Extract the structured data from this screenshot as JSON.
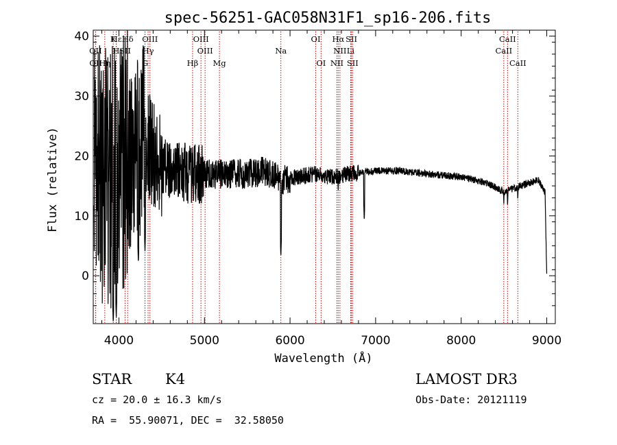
{
  "chart_data": {
    "type": "line",
    "title": "spec-56251-GAC058N31F1_sp16-206.fits",
    "xlabel": "Wavelength (Å)",
    "ylabel": "Flux (relative)",
    "xlim": [
      3700,
      9100
    ],
    "ylim": [
      -8,
      41
    ],
    "xticks": [
      4000,
      5000,
      6000,
      7000,
      8000,
      9000
    ],
    "yticks": [
      0,
      10,
      20,
      30,
      40
    ],
    "spectrum_anchors": [
      {
        "x": 3700,
        "y": 17
      },
      {
        "x": 3850,
        "y": 16
      },
      {
        "x": 4000,
        "y": 17
      },
      {
        "x": 4150,
        "y": 21
      },
      {
        "x": 4300,
        "y": 23
      },
      {
        "x": 4450,
        "y": 19
      },
      {
        "x": 4600,
        "y": 18
      },
      {
        "x": 4800,
        "y": 17
      },
      {
        "x": 5000,
        "y": 17
      },
      {
        "x": 5200,
        "y": 17
      },
      {
        "x": 5500,
        "y": 17
      },
      {
        "x": 5700,
        "y": 17.5
      },
      {
        "x": 5900,
        "y": 16
      },
      {
        "x": 6100,
        "y": 16.5
      },
      {
        "x": 6300,
        "y": 17
      },
      {
        "x": 6500,
        "y": 16.5
      },
      {
        "x": 6700,
        "y": 17
      },
      {
        "x": 7000,
        "y": 17.5
      },
      {
        "x": 7300,
        "y": 17.5
      },
      {
        "x": 7600,
        "y": 17
      },
      {
        "x": 8000,
        "y": 16.5
      },
      {
        "x": 8300,
        "y": 15.5
      },
      {
        "x": 8500,
        "y": 14
      },
      {
        "x": 8700,
        "y": 15
      },
      {
        "x": 8900,
        "y": 16
      },
      {
        "x": 8980,
        "y": 14
      },
      {
        "x": 9000,
        "y": 0
      }
    ],
    "spectrum_dips": [
      {
        "x": 3934,
        "y": -8
      },
      {
        "x": 3969,
        "y": -7
      },
      {
        "x": 4227,
        "y": 2
      },
      {
        "x": 4305,
        "y": 4
      },
      {
        "x": 5893,
        "y": 3
      },
      {
        "x": 6563,
        "y": 14
      },
      {
        "x": 6867,
        "y": 9
      },
      {
        "x": 8498,
        "y": 12
      },
      {
        "x": 8542,
        "y": 11.5
      },
      {
        "x": 8662,
        "y": 12.5
      }
    ],
    "lines": [
      {
        "label": "Hε",
        "x": 3970,
        "row": 0,
        "color": "#cc0000"
      },
      {
        "label": "K",
        "x": 3934,
        "row": 0,
        "color": "#cc0000"
      },
      {
        "label": "Hδ",
        "x": 4102,
        "row": 0,
        "color": "#cc0000"
      },
      {
        "label": "OIII",
        "x": 4363,
        "row": 0,
        "color": "#cc0000"
      },
      {
        "label": "OIII",
        "x": 4959,
        "row": 0,
        "color": "#cc0000"
      },
      {
        "label": "OI",
        "x": 6300,
        "row": 0,
        "color": "#cc0000"
      },
      {
        "label": "Hα",
        "x": 6563,
        "row": 0,
        "color": "#cc0000"
      },
      {
        "label": "SII",
        "x": 6717,
        "row": 0,
        "color": "#cc0000"
      },
      {
        "label": "CaII",
        "x": 8542,
        "row": 0,
        "color": "#cc0000"
      },
      {
        "label": "OII",
        "x": 3727,
        "row": 1,
        "color": "#cc0000"
      },
      {
        "label": "H",
        "x": 3968,
        "row": 1,
        "color": "#cc0000"
      },
      {
        "label": "SII",
        "x": 4072,
        "row": 1,
        "color": "#cc0000"
      },
      {
        "label": "Hγ",
        "x": 4341,
        "row": 1,
        "color": "#cc0000"
      },
      {
        "label": "OIII",
        "x": 5007,
        "row": 1,
        "color": "#cc0000"
      },
      {
        "label": "Na",
        "x": 5893,
        "row": 1,
        "color": "#cc0000"
      },
      {
        "label": "NII",
        "x": 6583,
        "row": 1,
        "color": "#cc0000"
      },
      {
        "label": "Li",
        "x": 6708,
        "row": 1,
        "color": "#cc0000"
      },
      {
        "label": "CaII",
        "x": 8498,
        "row": 1,
        "color": "#cc0000"
      },
      {
        "label": "OII",
        "x": 3729,
        "row": 2,
        "color": "#cc0000"
      },
      {
        "label": "Hη",
        "x": 3835,
        "row": 2,
        "color": "#cc0000"
      },
      {
        "label": "G",
        "x": 4305,
        "row": 2,
        "color": "#cc0000"
      },
      {
        "label": "Hβ",
        "x": 4861,
        "row": 2,
        "color": "#cc0000"
      },
      {
        "label": "Mg",
        "x": 5175,
        "row": 2,
        "color": "#cc0000"
      },
      {
        "label": "OI",
        "x": 6363,
        "row": 2,
        "color": "#cc0000"
      },
      {
        "label": "NII",
        "x": 6548,
        "row": 2,
        "color": "#cc0000"
      },
      {
        "label": "SII",
        "x": 6731,
        "row": 2,
        "color": "#cc0000"
      },
      {
        "label": "CaII",
        "x": 8662,
        "row": 2,
        "color": "#cc0000"
      }
    ]
  },
  "info": {
    "class_label": "STAR",
    "subclass": "K4",
    "survey": "LAMOST DR3",
    "cz": "cz = 20.0 ± 16.3 km/s",
    "obs_date": "Obs-Date: 20121119",
    "coords": "RA =  55.90071, DEC =  32.58050"
  }
}
